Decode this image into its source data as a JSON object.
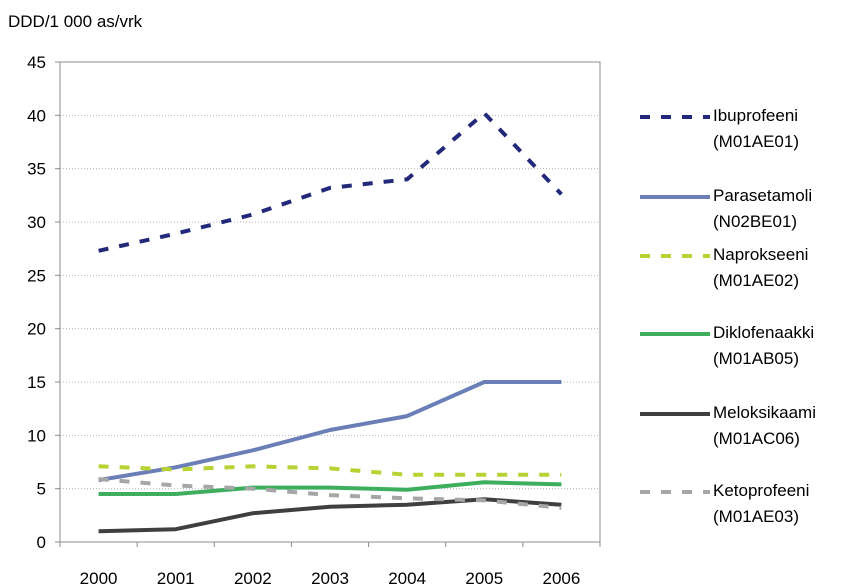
{
  "chart_data": {
    "type": "line",
    "ylabel": "DDD/1 000 as/vrk",
    "xlabel": "",
    "categories": [
      "2000",
      "2001",
      "2002",
      "2003",
      "2004",
      "2005",
      "2006"
    ],
    "ylim": [
      0,
      45
    ],
    "yticks": [
      "0",
      "5",
      "10",
      "15",
      "20",
      "25",
      "30",
      "35",
      "40",
      "45"
    ],
    "grid": true,
    "legend_position": "right",
    "series": [
      {
        "name": "Ibuprofeeni (M01AE01)",
        "line1": "Ibuprofeeni",
        "line2": "(M01AE01)",
        "color": "#22287a",
        "style": "dashed",
        "values": [
          27.3,
          28.9,
          30.7,
          33.2,
          34.0,
          40.2,
          32.6
        ]
      },
      {
        "name": "Parasetamoli (N02BE01)",
        "line1": "Parasetamoli",
        "line2": "(N02BE01)",
        "color": "#6a7fb8",
        "style": "solid",
        "values": [
          5.8,
          7.0,
          8.6,
          10.5,
          11.8,
          15.0,
          15.0
        ]
      },
      {
        "name": "Naprokseeni (M01AE02)",
        "line1": "Naprokseeni",
        "line2": "(M01AE02)",
        "color": "#b6d233",
        "style": "dashed",
        "values": [
          7.1,
          6.8,
          7.1,
          6.9,
          6.3,
          6.3,
          6.3
        ]
      },
      {
        "name": "Diklofenaakki (M01AB05)",
        "line1": "Diklofenaakki",
        "line2": "(M01AB05)",
        "color": "#3cae5e",
        "style": "solid",
        "values": [
          4.5,
          4.5,
          5.1,
          5.1,
          4.9,
          5.6,
          5.4
        ]
      },
      {
        "name": "Meloksikaami (M01AC06)",
        "line1": "Meloksikaami",
        "line2": "(M01AC06)",
        "color": "#3f3f3f",
        "style": "solid",
        "values": [
          1.0,
          1.2,
          2.7,
          3.3,
          3.5,
          4.0,
          3.5
        ]
      },
      {
        "name": "Ketoprofeeni (M01AE03)",
        "line1": "Ketoprofeeni",
        "line2": "(M01AE03)",
        "color": "#a6a6a6",
        "style": "dashed",
        "values": [
          5.9,
          5.3,
          5.0,
          4.4,
          4.1,
          3.9,
          3.2
        ]
      }
    ]
  }
}
